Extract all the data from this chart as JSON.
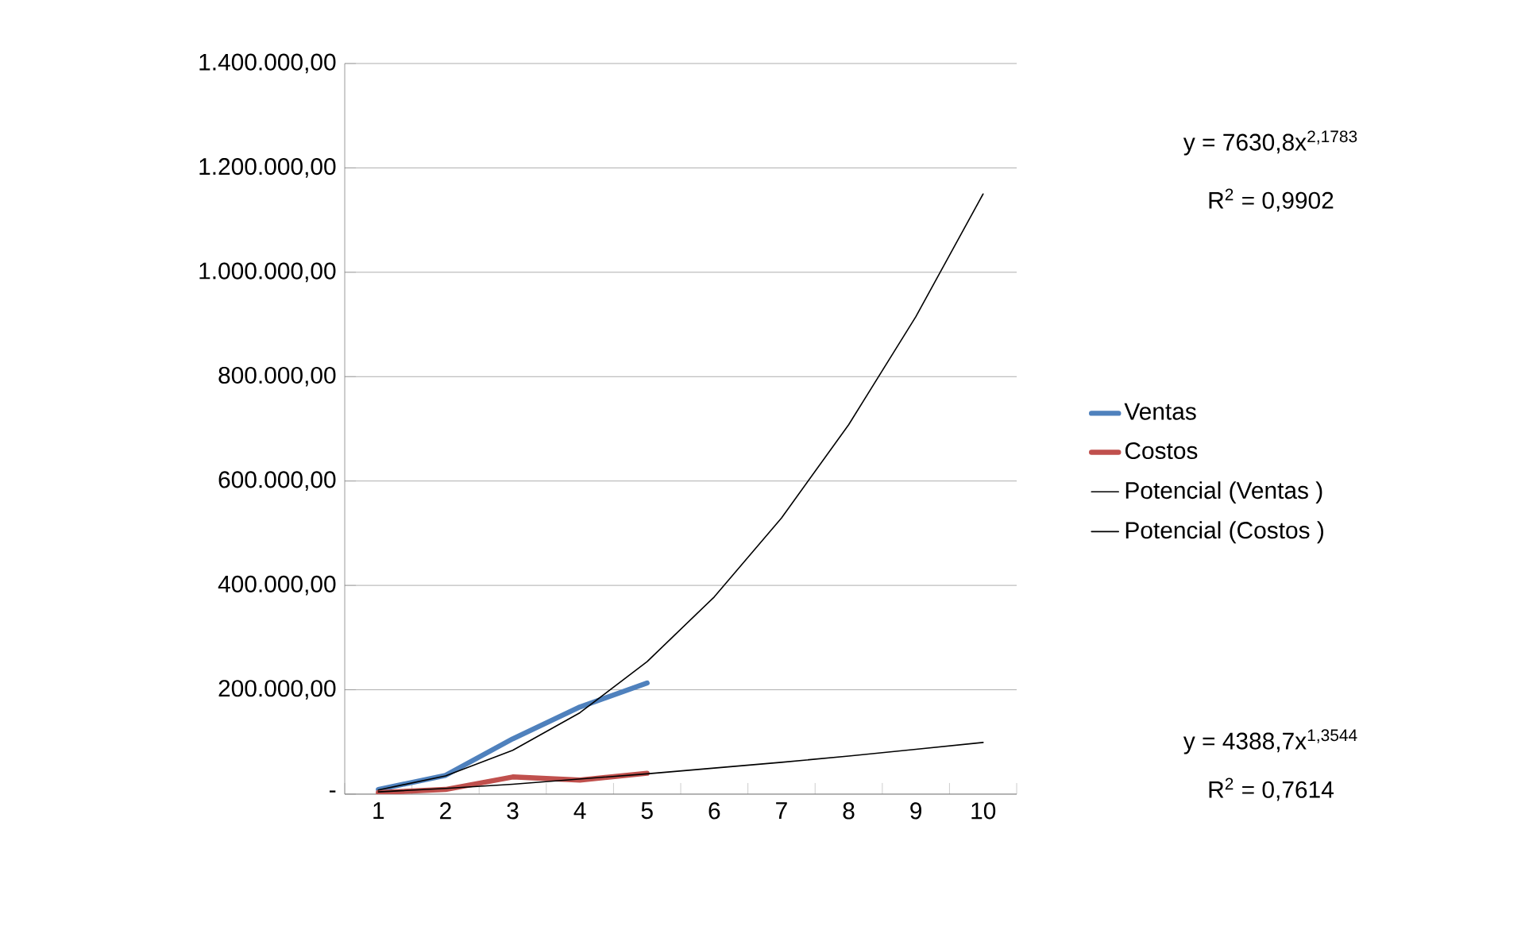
{
  "chart_data": {
    "type": "line",
    "categories": [
      "1",
      "2",
      "3",
      "4",
      "5",
      "6",
      "7",
      "8",
      "9",
      "10"
    ],
    "series": [
      {
        "name": "Ventas",
        "color": "#4f81bd",
        "values": [
          9000,
          36000,
          106000,
          167000,
          213000,
          null,
          null,
          null,
          null,
          null
        ]
      },
      {
        "name": "Costos",
        "color": "#c0504d",
        "values": [
          3000,
          9000,
          33000,
          27000,
          40000,
          null,
          null,
          null,
          null,
          null
        ]
      },
      {
        "name": "Potencial (Ventas )",
        "color": "#000000",
        "values": [
          8000,
          35000,
          84000,
          156000,
          254000,
          378000,
          529000,
          708000,
          915000,
          1150000
        ]
      },
      {
        "name": "Potencial (Costos )",
        "color": "#000000",
        "values": [
          4400,
          11000,
          19000,
          29000,
          39000,
          50000,
          61000,
          73000,
          86000,
          99000
        ]
      }
    ],
    "ylim": [
      0,
      1400000
    ],
    "yticks": [
      {
        "value": 0,
        "label": "-"
      },
      {
        "value": 200000,
        "label": "200.000,00"
      },
      {
        "value": 400000,
        "label": "400.000,00"
      },
      {
        "value": 600000,
        "label": "600.000,00"
      },
      {
        "value": 800000,
        "label": "800.000,00"
      },
      {
        "value": 1000000,
        "label": "1.000.000,00"
      },
      {
        "value": 1200000,
        "label": "1.200.000,00"
      },
      {
        "value": 1400000,
        "label": "1.400.000,00"
      }
    ],
    "grid": "y",
    "legend": "right",
    "marker": "none",
    "annotations": [
      "y = 7630,8x$^{2,1783}$",
      "R$^{2}$ = 0,9902",
      "y = 4388,7x$^{1,3544}$",
      "R$^{2}$ = 0,7614"
    ]
  }
}
